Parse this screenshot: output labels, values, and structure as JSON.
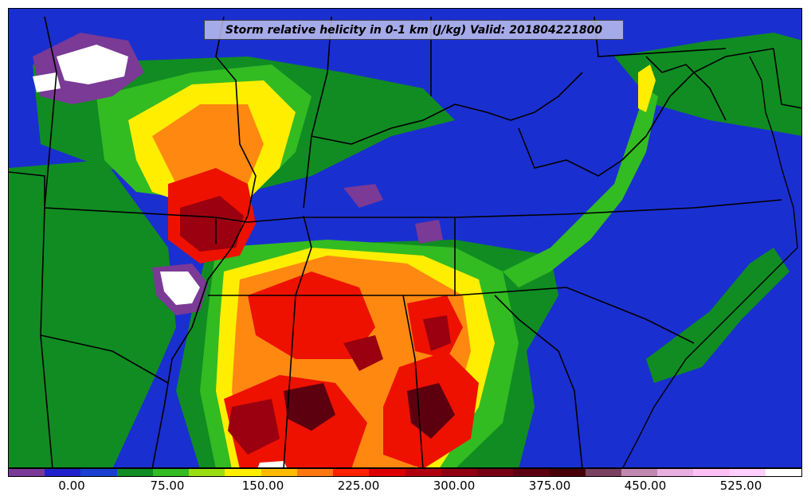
{
  "title": "Storm relative helicity in 0-1 km (J/kg) Valid: 201804221800",
  "colorbar": {
    "colors": [
      "#7a3a96",
      "#2222cc",
      "#1a3fd0",
      "#118c22",
      "#33bb22",
      "#99dd11",
      "#ffee00",
      "#ffbb00",
      "#ff7711",
      "#ff2200",
      "#dd0000",
      "#b00010",
      "#900012",
      "#780015",
      "#5c0012",
      "#480008",
      "#7a4060",
      "#c088b0",
      "#e8b0e0",
      "#ffc0f5",
      "#ffd0ff",
      "#ffffff"
    ],
    "ticks": [
      "0.00",
      "75.00",
      "150.00",
      "225.00",
      "300.00",
      "375.00",
      "450.00",
      "525.00"
    ]
  },
  "map": {
    "background_color": "#1a2fd0",
    "field_colors": {
      "low_purple": "#7a3a96",
      "deep_blue": "#1a1ad0",
      "dark_green": "#118c22",
      "green": "#33bb22",
      "yellow_green": "#aadd11",
      "yellow": "#ffee00",
      "orange": "#ff8811",
      "red": "#ee1100",
      "dark_red": "#9a0010",
      "maroon": "#5c0010",
      "white": "#ffffff"
    }
  }
}
